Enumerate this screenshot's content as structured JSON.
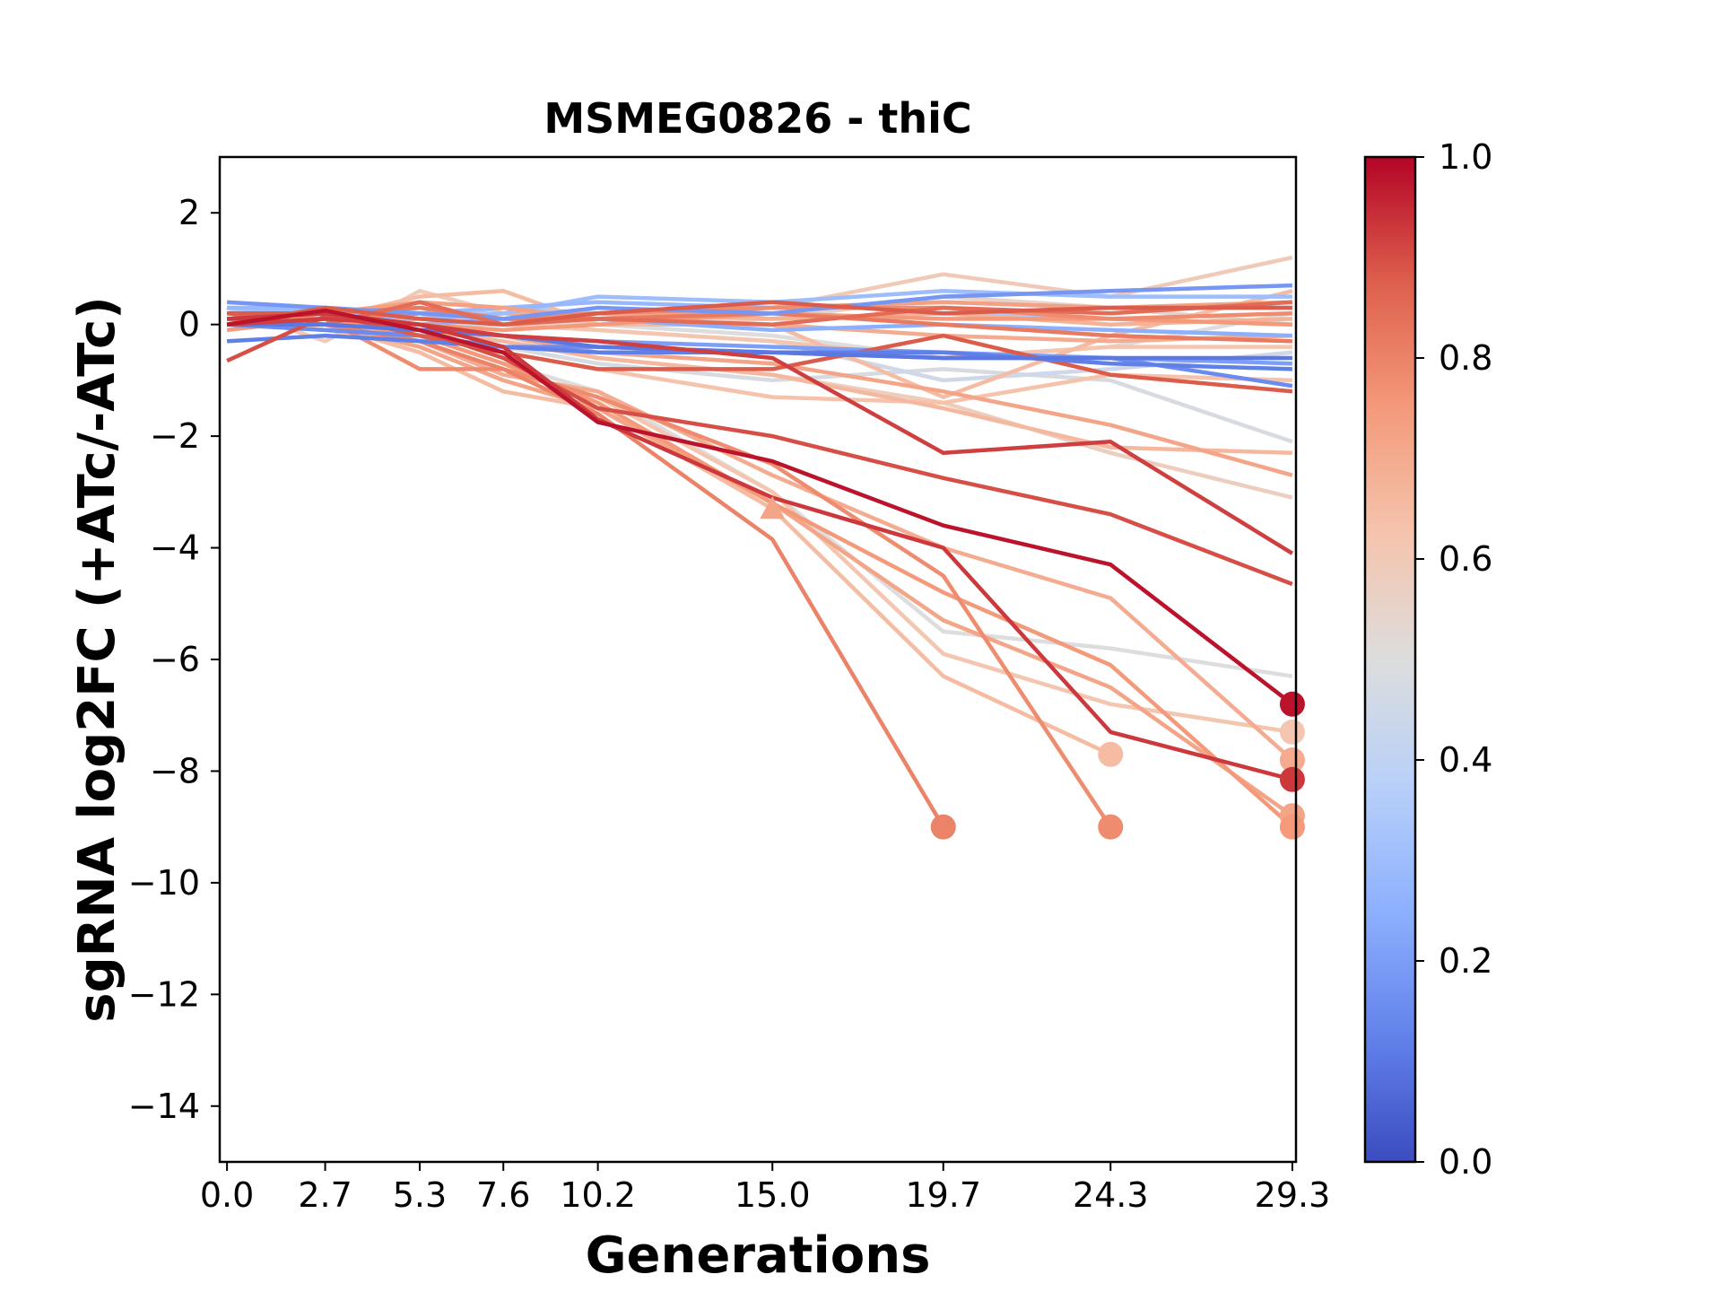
{
  "chart_data": {
    "type": "line",
    "title": "MSMEG0826 - thiC",
    "xlabel": "Generations",
    "ylabel": "sgRNA log2FC (+ATc/-ATc)",
    "x": [
      0.0,
      2.7,
      5.3,
      7.6,
      10.2,
      15.0,
      19.7,
      24.3,
      29.3
    ],
    "x_tick_labels": [
      "0.0",
      "2.7",
      "5.3",
      "7.6",
      "10.2",
      "15.0",
      "19.7",
      "24.3",
      "29.3"
    ],
    "xlim": [
      -0.2,
      29.4
    ],
    "ylim": [
      -15,
      3
    ],
    "y_ticks": [
      2,
      0,
      -2,
      -4,
      -6,
      -8,
      -10,
      -12,
      -14
    ],
    "y_tick_labels": [
      "2",
      "0",
      "−2",
      "−4",
      "−6",
      "−8",
      "−10",
      "−12",
      "−14"
    ],
    "grid": false,
    "colormap": "coolwarm",
    "colorbar": {
      "range": [
        0.0,
        1.0
      ],
      "ticks": [
        0.0,
        0.2,
        0.4,
        0.6,
        0.8,
        1.0
      ],
      "tick_labels": [
        "0.0",
        "0.2",
        "0.4",
        "0.6",
        "0.8",
        "1.0"
      ]
    },
    "series": [
      {
        "c": 0.98,
        "values": [
          0.0,
          0.25,
          -0.1,
          -0.5,
          -1.75,
          -2.45,
          -3.6,
          -4.3,
          -6.8
        ],
        "end": "circle"
      },
      {
        "c": 0.93,
        "values": [
          0.1,
          0.2,
          0.0,
          -0.4,
          -1.7,
          -3.1,
          -4.0,
          -7.3,
          -8.15
        ],
        "end": "circle"
      },
      {
        "c": 0.9,
        "values": [
          -0.65,
          0.15,
          -0.1,
          -0.6,
          -1.5,
          -2.0,
          -2.75,
          -3.4,
          -4.65
        ],
        "end": null
      },
      {
        "c": 0.92,
        "values": [
          0.0,
          0.1,
          0.0,
          -0.2,
          -0.3,
          -0.6,
          -2.3,
          -2.1,
          -4.1
        ],
        "end": null
      },
      {
        "c": 0.88,
        "values": [
          0.2,
          0.2,
          -0.2,
          -0.5,
          -0.8,
          -0.8,
          -0.2,
          -0.9,
          -1.2
        ],
        "end": null
      },
      {
        "c": 0.8,
        "values": [
          0.1,
          0.0,
          -0.3,
          -0.8,
          -1.6,
          -3.85,
          -9.0,
          null,
          null
        ],
        "end": "circle"
      },
      {
        "c": 0.78,
        "values": [
          0.2,
          0.1,
          -0.8,
          -0.8,
          -1.3,
          -2.5,
          -4.5,
          -9.0,
          null
        ],
        "end": "circle"
      },
      {
        "c": 0.75,
        "values": [
          0.0,
          0.1,
          -0.2,
          -0.7,
          -1.4,
          -3.2,
          -4.8,
          -6.1,
          -9.0
        ],
        "end": "circle"
      },
      {
        "c": 0.72,
        "values": [
          0.1,
          0.0,
          -0.4,
          -1.0,
          -1.5,
          -3.2,
          -5.3,
          -6.5,
          -8.8
        ],
        "end": "circle"
      },
      {
        "c": 0.7,
        "values": [
          0.2,
          0.1,
          -0.3,
          -0.9,
          -1.2,
          -2.7,
          -4.0,
          -4.9,
          -7.8
        ],
        "end": "circle"
      },
      {
        "c": 0.65,
        "values": [
          0.0,
          0.0,
          -0.5,
          -1.2,
          -1.5,
          -3.3,
          -6.3,
          -7.7,
          null
        ],
        "end": "circle"
      },
      {
        "c": 0.62,
        "values": [
          0.1,
          -0.1,
          -0.3,
          -0.8,
          -1.3,
          -3.0,
          -5.9,
          -6.8,
          -7.3
        ],
        "end": "circle"
      },
      {
        "c": 0.5,
        "values": [
          0.2,
          0.1,
          -0.2,
          -0.7,
          -1.2,
          -3.0,
          -5.5,
          -5.8,
          -6.3
        ],
        "end": null
      },
      {
        "c": 0.72,
        "values": [
          0.0,
          0.1,
          0.0,
          -0.2,
          -0.5,
          -0.7,
          -1.2,
          -1.8,
          -2.7
        ],
        "end": null
      },
      {
        "c": 0.66,
        "values": [
          0.2,
          0.0,
          -0.1,
          -0.3,
          -0.6,
          -0.9,
          -1.5,
          -2.2,
          -2.3
        ],
        "end": null
      },
      {
        "c": 0.58,
        "values": [
          0.1,
          0.1,
          0.0,
          -0.2,
          -0.6,
          -0.9,
          -1.4,
          -2.3,
          -3.1
        ],
        "end": null
      },
      {
        "c": 0.48,
        "values": [
          0.0,
          -0.1,
          -0.2,
          -0.4,
          -0.7,
          -1.0,
          -0.8,
          -1.0,
          -2.1
        ],
        "end": null
      },
      {
        "c": 0.63,
        "values": [
          0.1,
          0.0,
          -0.2,
          -0.5,
          -0.8,
          -1.3,
          -1.4,
          -0.9,
          -1.0
        ],
        "end": null
      },
      {
        "c": 0.3,
        "values": [
          0.3,
          0.2,
          0.1,
          0.2,
          0.5,
          0.4,
          0.6,
          0.5,
          0.5
        ],
        "end": null
      },
      {
        "c": 0.28,
        "values": [
          0.3,
          0.3,
          0.2,
          0.3,
          0.4,
          0.3,
          0.4,
          0.3,
          0.3
        ],
        "end": null
      },
      {
        "c": 0.25,
        "values": [
          0.2,
          0.1,
          0.0,
          0.1,
          0.1,
          -0.1,
          0.0,
          -0.1,
          -0.2
        ],
        "end": null
      },
      {
        "c": 0.2,
        "values": [
          0.1,
          0.0,
          -0.1,
          -0.2,
          -0.3,
          -0.4,
          -0.5,
          -0.6,
          -0.7
        ],
        "end": null
      },
      {
        "c": 0.15,
        "values": [
          0.0,
          -0.1,
          -0.2,
          -0.4,
          -0.4,
          -0.5,
          -0.6,
          -0.6,
          -1.1
        ],
        "end": null
      },
      {
        "c": 0.12,
        "values": [
          -0.3,
          -0.2,
          -0.3,
          -0.4,
          -0.5,
          -0.5,
          -0.5,
          -0.7,
          -0.8
        ],
        "end": null
      },
      {
        "c": 0.1,
        "values": [
          0.0,
          0.0,
          -0.1,
          -0.2,
          -0.4,
          -0.5,
          -0.6,
          -0.6,
          -0.6
        ],
        "end": null
      },
      {
        "c": 0.18,
        "values": [
          0.4,
          0.3,
          0.2,
          0.1,
          0.3,
          0.2,
          0.5,
          0.6,
          0.7
        ],
        "end": null
      },
      {
        "c": 0.35,
        "values": [
          0.2,
          0.3,
          0.1,
          0.3,
          0.2,
          0.1,
          0.2,
          0.1,
          0.0
        ],
        "end": null
      },
      {
        "c": 0.45,
        "values": [
          0.1,
          0.1,
          0.0,
          0.0,
          -0.1,
          -0.3,
          -1.0,
          -0.8,
          -0.5
        ],
        "end": null
      },
      {
        "c": 0.5,
        "values": [
          0.2,
          0.2,
          0.1,
          0.0,
          0.0,
          -0.2,
          -0.6,
          -0.4,
          0.2
        ],
        "end": null
      },
      {
        "c": 0.55,
        "values": [
          0.1,
          0.0,
          0.3,
          0.1,
          0.0,
          0.1,
          0.5,
          0.3,
          0.0
        ],
        "end": null
      },
      {
        "c": 0.6,
        "values": [
          0.3,
          -0.3,
          0.6,
          0.2,
          0.2,
          0.3,
          0.9,
          0.5,
          1.2
        ],
        "end": null
      },
      {
        "c": 0.65,
        "values": [
          0.0,
          0.1,
          0.5,
          0.6,
          0.0,
          0.0,
          -1.3,
          -0.2,
          0.6
        ],
        "end": null
      },
      {
        "c": 0.68,
        "values": [
          0.1,
          0.0,
          0.2,
          0.1,
          0.2,
          0.1,
          0.2,
          0.0,
          0.1
        ],
        "end": null
      },
      {
        "c": 0.73,
        "values": [
          0.2,
          0.2,
          0.4,
          0.3,
          0.1,
          0.3,
          0.4,
          0.3,
          0.4
        ],
        "end": null
      },
      {
        "c": 0.75,
        "values": [
          -0.1,
          0.1,
          0.0,
          -0.1,
          0.0,
          0.2,
          0.1,
          0.1,
          0.0
        ],
        "end": null
      },
      {
        "c": 0.78,
        "values": [
          0.0,
          0.1,
          0.2,
          0.1,
          0.2,
          0.3,
          0.3,
          0.1,
          0.2
        ],
        "end": null
      },
      {
        "c": 0.82,
        "values": [
          0.1,
          0.2,
          0.3,
          0.1,
          0.1,
          0.2,
          0.0,
          -0.2,
          -0.3
        ],
        "end": null
      },
      {
        "c": 0.85,
        "values": [
          0.2,
          0.0,
          0.4,
          0.0,
          0.1,
          0.0,
          0.3,
          0.2,
          0.4
        ],
        "end": null
      },
      {
        "c": 0.88,
        "values": [
          0.0,
          0.3,
          0.1,
          0.0,
          0.2,
          0.4,
          0.2,
          0.3,
          0.3
        ],
        "end": null
      },
      {
        "c": 0.62,
        "values": [
          0.0,
          0.1,
          0.2,
          0.0,
          -0.1,
          -0.3,
          -0.6,
          -0.4,
          -0.4
        ],
        "end": null
      },
      {
        "c": 0.7,
        "values": [
          0.1,
          0.0,
          0.1,
          0.2,
          0.1,
          0.0,
          -0.2,
          -0.3,
          -0.2
        ],
        "end": null
      }
    ],
    "markers": [
      {
        "x": 15.0,
        "y": -3.3,
        "c": 0.72,
        "shape": "triangle"
      }
    ]
  }
}
